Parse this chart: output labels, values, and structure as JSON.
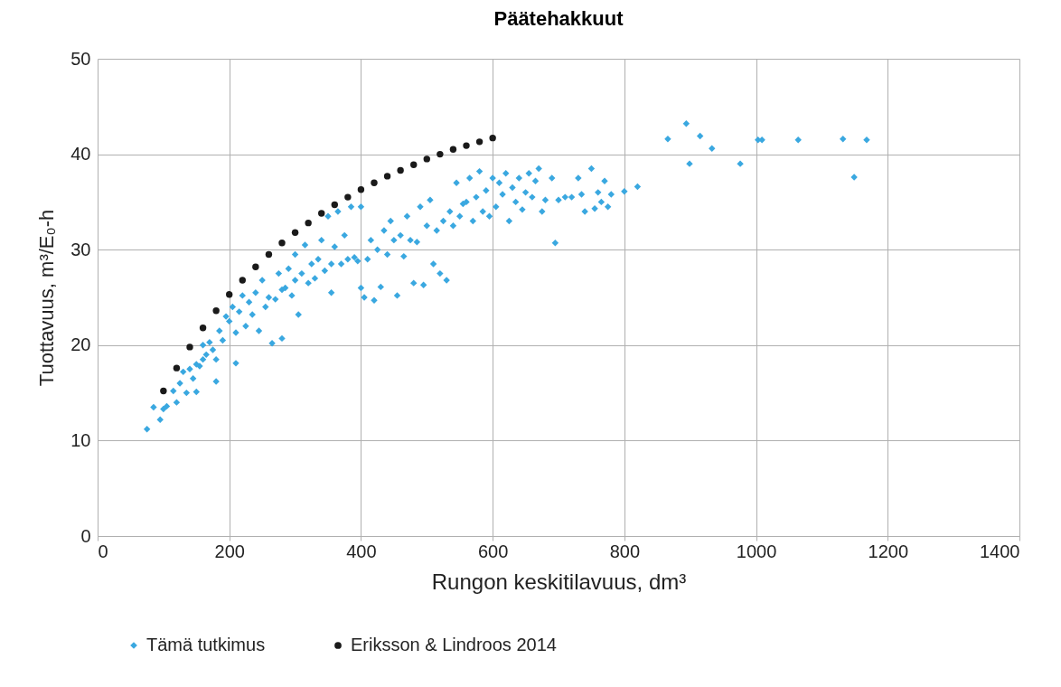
{
  "chart_data": {
    "type": "scatter",
    "title": "Päätehakkuut",
    "xlabel": "Rungon keskitilavuus, dm³",
    "ylabel": "Tuottavuus, m³/E₀-h",
    "xlim": [
      0,
      1400
    ],
    "xticks": [
      0,
      200,
      400,
      600,
      800,
      1000,
      1200,
      1400
    ],
    "ylim": [
      0,
      50
    ],
    "yticks": [
      0,
      10,
      20,
      30,
      40,
      50
    ],
    "grid": true,
    "legend": "bottom",
    "series": [
      {
        "name": "Tämä tutkimus",
        "color": "#3aa8e0",
        "marker": "diamond",
        "x": [
          75,
          85,
          95,
          100,
          105,
          115,
          120,
          125,
          130,
          135,
          140,
          145,
          150,
          150,
          155,
          160,
          160,
          165,
          170,
          175,
          180,
          180,
          185,
          190,
          195,
          200,
          205,
          210,
          210,
          215,
          220,
          225,
          230,
          235,
          240,
          245,
          250,
          255,
          260,
          265,
          270,
          275,
          280,
          280,
          285,
          290,
          295,
          300,
          300,
          305,
          310,
          315,
          320,
          325,
          330,
          335,
          340,
          345,
          350,
          355,
          355,
          360,
          365,
          370,
          375,
          380,
          385,
          390,
          395,
          400,
          400,
          405,
          410,
          415,
          420,
          425,
          430,
          435,
          440,
          445,
          450,
          455,
          460,
          465,
          470,
          475,
          480,
          485,
          490,
          495,
          500,
          505,
          510,
          515,
          520,
          525,
          530,
          535,
          540,
          545,
          550,
          555,
          560,
          565,
          570,
          575,
          580,
          585,
          590,
          595,
          600,
          605,
          610,
          615,
          620,
          625,
          630,
          635,
          640,
          645,
          650,
          655,
          660,
          665,
          670,
          675,
          680,
          690,
          695,
          700,
          710,
          720,
          730,
          735,
          740,
          750,
          755,
          760,
          765,
          770,
          775,
          780,
          800,
          820,
          866,
          894,
          899,
          915,
          933,
          976,
          1003,
          1009,
          1064,
          1132,
          1149,
          1168
        ],
        "values": [
          11.2,
          13.5,
          12.2,
          13.3,
          13.6,
          15.2,
          14.0,
          16.0,
          17.2,
          15.0,
          17.5,
          16.5,
          15.1,
          18.0,
          17.8,
          18.5,
          20.0,
          19.0,
          20.3,
          19.5,
          16.2,
          18.5,
          21.5,
          20.5,
          23.0,
          22.5,
          24.0,
          18.1,
          21.3,
          23.5,
          25.2,
          22.0,
          24.5,
          23.2,
          25.5,
          21.5,
          26.8,
          24.0,
          25.0,
          20.2,
          24.8,
          27.5,
          20.7,
          25.8,
          26.0,
          28.0,
          25.2,
          29.5,
          26.8,
          23.2,
          27.5,
          30.5,
          26.5,
          28.5,
          27.0,
          29.0,
          31.0,
          27.8,
          33.5,
          25.5,
          28.5,
          30.3,
          34.0,
          28.5,
          31.5,
          29.0,
          34.5,
          29.2,
          28.8,
          26.0,
          34.5,
          25.0,
          29.0,
          31.0,
          24.7,
          30.0,
          26.1,
          32.0,
          29.5,
          33.0,
          31.0,
          25.2,
          31.5,
          29.3,
          33.5,
          31.0,
          26.5,
          30.8,
          34.5,
          26.3,
          32.5,
          35.2,
          28.5,
          32.0,
          27.5,
          33.0,
          26.8,
          34.0,
          32.5,
          37.0,
          33.5,
          34.8,
          35.0,
          37.5,
          33.0,
          35.5,
          38.2,
          34.0,
          36.2,
          33.5,
          37.5,
          34.5,
          37.0,
          35.8,
          38.0,
          33.0,
          36.5,
          35.0,
          37.5,
          34.2,
          36.0,
          38.0,
          35.5,
          37.2,
          38.5,
          34.0,
          35.2,
          37.5,
          30.7,
          35.2,
          35.5,
          35.5,
          37.5,
          35.8,
          34.0,
          38.5,
          34.3,
          36.0,
          35.0,
          37.2,
          34.5,
          35.8,
          36.1,
          36.6,
          41.6,
          43.2,
          39.0,
          41.9,
          40.6,
          39.0,
          41.5,
          41.5,
          41.5,
          41.6,
          37.6,
          41.5
        ]
      },
      {
        "name": "Eriksson & Lindroos 2014",
        "color": "#1a1a1a",
        "marker": "circle",
        "x": [
          100,
          120,
          140,
          160,
          180,
          200,
          220,
          240,
          260,
          280,
          300,
          320,
          340,
          360,
          380,
          400,
          420,
          440,
          460,
          480,
          500,
          520,
          540,
          560,
          580,
          600
        ],
        "values": [
          15.2,
          17.6,
          19.8,
          21.8,
          23.6,
          25.3,
          26.8,
          28.2,
          29.5,
          30.7,
          31.8,
          32.8,
          33.8,
          34.7,
          35.5,
          36.3,
          37.0,
          37.7,
          38.3,
          38.9,
          39.5,
          40.0,
          40.5,
          40.9,
          41.3,
          41.7
        ]
      }
    ]
  }
}
